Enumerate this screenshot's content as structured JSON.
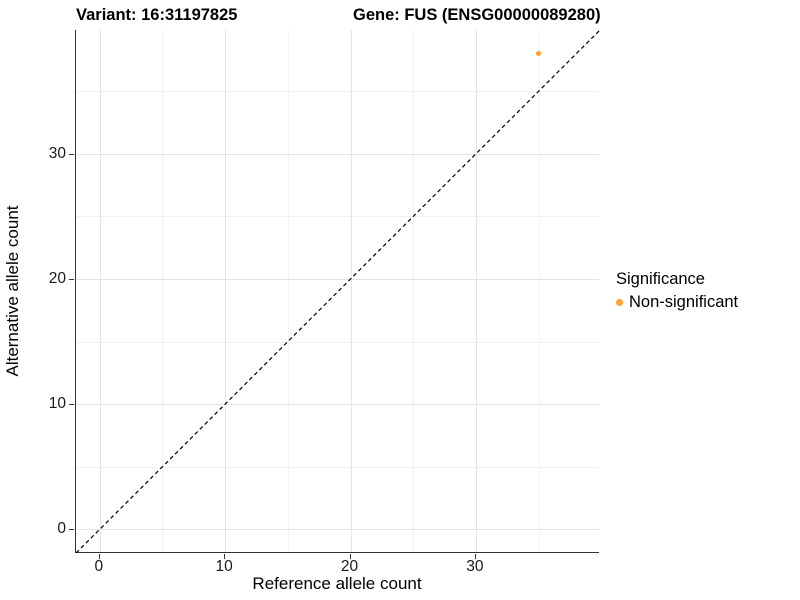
{
  "title": {
    "left": "Variant: 16:31197825",
    "right": "Gene: FUS (ENSG00000089280)"
  },
  "chart_data": {
    "type": "scatter",
    "title": "Variant: 16:31197825    Gene: FUS (ENSG00000089280)",
    "xlabel": "Reference allele count",
    "ylabel": "Alternative allele count",
    "xlim": [
      -1.9,
      39.9
    ],
    "ylim": [
      -1.9,
      39.9
    ],
    "x_major_ticks": [
      0,
      10,
      20,
      30
    ],
    "y_major_ticks": [
      0,
      10,
      20,
      30
    ],
    "x_minor_ticks": [
      5,
      15,
      25,
      35
    ],
    "y_minor_ticks": [
      5,
      15,
      25,
      35
    ],
    "grid": "major+minor",
    "reference_line": {
      "kind": "identity y=x",
      "style": "dashed",
      "color": "#000000"
    },
    "series": [
      {
        "name": "Non-significant",
        "color": "#FFA033",
        "points": [
          {
            "x": 35,
            "y": 38
          }
        ]
      }
    ],
    "legend": {
      "title": "Significance",
      "position": "right",
      "entries": [
        {
          "label": "Non-significant",
          "color": "#FFA033"
        }
      ]
    }
  },
  "colors": {
    "background": "#ffffff",
    "grid_major": "#e4e4e4",
    "grid_minor": "#f1f1f1",
    "axis_line": "#333333",
    "point": "#FFA033"
  }
}
